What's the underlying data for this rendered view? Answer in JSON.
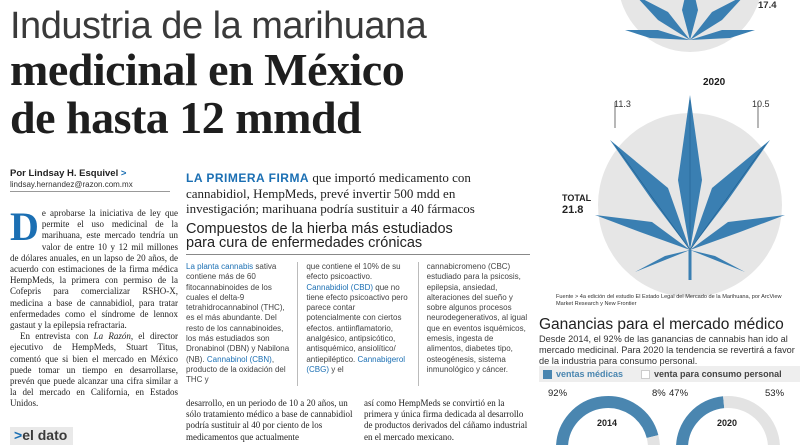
{
  "headline": {
    "line1": "Industria de la marihuana",
    "line2": "medicinal en México",
    "line3": "de hasta 12 mmdd"
  },
  "byline": {
    "author": "Por Lindsay H. Esquivel",
    "arrow": ">",
    "email": "lindsay.hernandez@razon.com.mx"
  },
  "deck": {
    "lead": "LA PRIMERA FIRMA",
    "text": " que importó medicamento con cannabidiol, HempMeds, prevé invertir 500 mdd en investigación; marihuana podría sustituir a 40 fármacos"
  },
  "body_left": {
    "dropcap": "D",
    "p1": "e aprobarse la iniciativa de ley que permite el uso medicinal de la marihuana, este mercado tendría un valor de entre 10 y 12 mil millones de dólares anuales, en un lapso de 20 años, de acuerdo con estimaciones de la firma médica HempMeds, la primera con permiso de la Cofepris para comercializar RSHO-X, medicina a base de cannabidiol, para tratar enfermedades como el síndrome de lennox gastaut y la epilepsia refractaria.",
    "p2_a": "En entrevista con ",
    "p2_em": "La Razón",
    "p2_b": ", el director ejecutivo de HempMeds, Stuart Titus, comentó que si bien el mercado en México puede tomar un tiempo en desarrollarse, prevén que puede alcanzar una cifra similar a la del mercado en California, en Estados Unidos."
  },
  "el_dato": {
    "arrow": ">",
    "label": "el dato"
  },
  "box": {
    "title_line1": "Compuestos de la hierba más estudiados",
    "title_line2": "para cura de enfermedades crónicas",
    "col1_hl1": "La planta cannabis",
    "col1_t1": " sativa contiene más de 60 fitocannabinoides de los cuales el delta-9 tetrahidrocannabinol (THC), es el más abundante. Del resto de los cannabinoides, los más estudiados son Dronabinol (DBN) y Nabilona (NB). ",
    "col1_hl2": "Cannabinol (CBN)",
    "col1_t2": ", producto de la oxidación del THC y",
    "col2_t1": "que contiene el 10% de su efecto psicoactivo. ",
    "col2_hl1": "Cannabidiol (CBD)",
    "col2_t2": " que no tiene efecto psicoactivo pero parece contar potencialmente con ciertos efectos. antiinflamatorio, analgésico, antipsicótico, antisquémico, ansiolítico/ antiepiléptico. ",
    "col2_hl2": "Cannabigerol (CBG)",
    "col2_t3": " y el",
    "col3_t1": "cannabicromeno (CBC) estudiado para la psicosis, epilepsia, ansiedad, alteraciones del sueño y sobre algunos procesos neurodegenerativos, al igual que en eventos isquémicos, emesis, ingesta de alimentos, diabetes tipo, osteogénesis, sistema inmunológico y cáncer."
  },
  "body_bottom": {
    "col1": "desarrollo, en un periodo de 10 a 20 años, un sólo tratamiento médico a base de cannabidiol podría sustituir al 40 por ciento de los medicamentos que actualmente",
    "col2": "así como HempMeds se convirtió en la primera y única firma dedicada al desarrollo de productos derivados del cáñamo industrial en el mercado mexicano."
  },
  "infographic": {
    "year_2020": "2020",
    "val_top": "17.4",
    "val_left": "11.3",
    "val_right": "10.5",
    "total_label": "TOTAL",
    "total_value": "21.8",
    "source": "Fuente > 4a edición del estudio El Estado Legal del Mercado de la Marihuana, por ArcView Market Research y New Frontier"
  },
  "ganancias": {
    "title": "Ganancias para el mercado médico",
    "subtitle": "Desde 2014, el 92% de las ganancias de cannabis han ido al mercado medicinal. Para 2020 la tendencia se revertirá a favor de la industria para consumo personal.",
    "legend_medical": "ventas médicas",
    "legend_personal": "venta para consumo personal"
  },
  "chart_data": {
    "type": "pie",
    "categories": [
      "ventas médicas",
      "venta para consumo personal"
    ],
    "series": [
      {
        "name": "2014",
        "values": [
          92,
          8
        ]
      },
      {
        "name": "2020",
        "values": [
          47,
          53
        ]
      }
    ],
    "colors": {
      "medical": "#4a86b0",
      "personal": "#e3e3e3"
    },
    "labels": {
      "y2014": "2014",
      "y2020": "2020",
      "p92": "92%",
      "p8": "8%",
      "p47": "47%",
      "p53": "53%"
    }
  },
  "colors": {
    "accent_blue": "#1b6fb3",
    "leaf_blue": "#3a7fb2",
    "circle_grey": "#e6e6e6"
  }
}
